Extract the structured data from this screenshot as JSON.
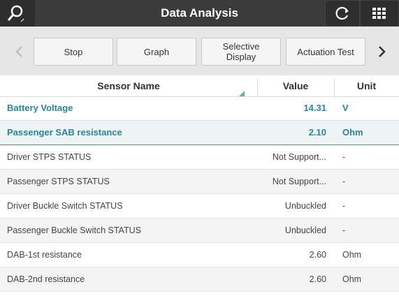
{
  "header": {
    "title": "Data Analysis"
  },
  "toolbar": {
    "buttons": [
      "Stop",
      "Graph",
      "Selective Display",
      "Actuation Test"
    ]
  },
  "table": {
    "columns": [
      "Sensor Name",
      "Value",
      "Unit"
    ],
    "rows": [
      [
        "Battery Voltage",
        "14.31",
        "V"
      ],
      [
        "Passenger SAB resistance",
        "2.10",
        "Ohm"
      ],
      [
        "Driver STPS STATUS",
        "Not Support...",
        "-"
      ],
      [
        "Passenger STPS STATUS",
        "Not Support...",
        "-"
      ],
      [
        "Driver Buckle Switch STATUS",
        "Unbuckled",
        "-"
      ],
      [
        "Passenger Buckle Switch STATUS",
        "Unbuckled",
        "-"
      ],
      [
        "DAB-1st resistance",
        "2.60",
        "Ohm"
      ],
      [
        "DAB-2nd resistance",
        "2.60",
        "Ohm"
      ]
    ]
  }
}
